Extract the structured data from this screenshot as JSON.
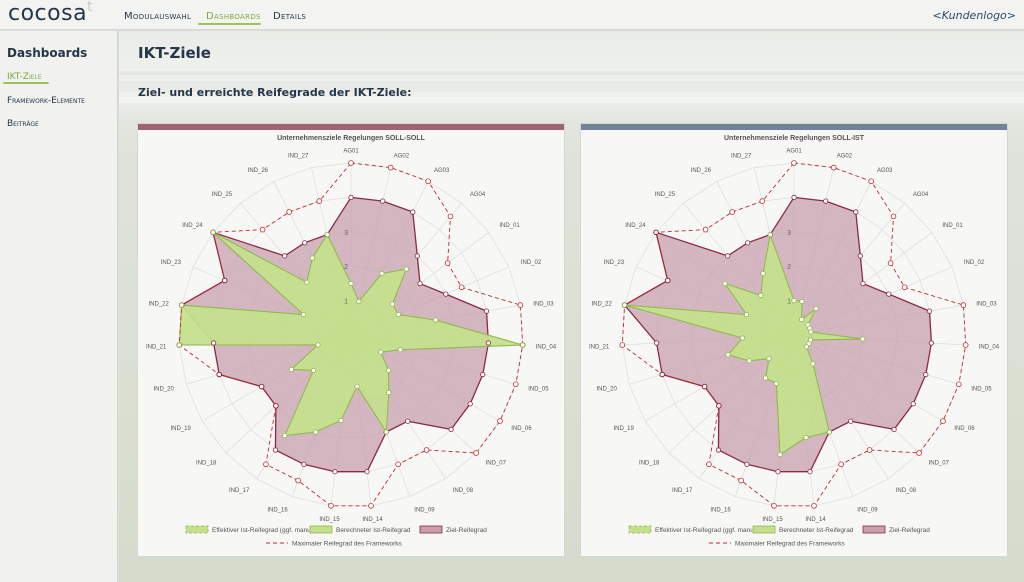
{
  "app": {
    "logo": "cocosa",
    "logo_mark": "t",
    "customer_logo": "<Kundenlogo>"
  },
  "nav": {
    "items": [
      {
        "label": "Modulauswahl"
      },
      {
        "label": "Dashboards"
      },
      {
        "label": "Details"
      }
    ],
    "active": "Dashboards"
  },
  "sidebar": {
    "title": "Dashboards",
    "items": [
      {
        "label": "IKT-Ziele"
      },
      {
        "label": "Framework-Elemente"
      },
      {
        "label": "Beiträge"
      }
    ],
    "active": "IKT-Ziele"
  },
  "page": {
    "title": "IKT-Ziele",
    "subtitle": "Ziel- und erreichte Reifegrade der IKT-Ziele:"
  },
  "colors": {
    "ziel_fill": "#c8a0ae",
    "ziel_line": "#8c2a45",
    "ist_fill": "#c4e08c",
    "ist_line": "#8fb84a",
    "max_line": "#c0282d",
    "panel1_bar": "#a36271",
    "panel2_bar": "#6f8296"
  },
  "chart_data": [
    {
      "type": "radar",
      "title": "Unternehmensziele Regelungen SOLL-SOLL",
      "axes": [
        "AG01",
        "AG02",
        "AG03",
        "AG04",
        "IND_01",
        "IND_02",
        "IND_03",
        "IND_04",
        "IND_05",
        "IND_06",
        "IND_07",
        "IND_08",
        "IND_09",
        "IND_14",
        "IND_15",
        "IND_16",
        "IND_17",
        "IND_18",
        "IND_19",
        "IND_20",
        "IND_21",
        "IND_22",
        "IND_23",
        "IND_24",
        "IND_25",
        "IND_26",
        "IND_27"
      ],
      "tick_labels": [
        "1",
        "2",
        "3"
      ],
      "rmax": 5,
      "series": [
        {
          "name": "Maximaler Reifegrad des Frameworks",
          "style": "dashed",
          "values": [
            5,
            5,
            5,
            4.5,
            3.5,
            3.5,
            5,
            5,
            5,
            5,
            5,
            4,
            4,
            5,
            5,
            4.5,
            4.5,
            3,
            3,
            4,
            5,
            5,
            4,
            5,
            4,
            4,
            4
          ]
        },
        {
          "name": "Ziel-Reifegrad",
          "style": "filled",
          "values": [
            4,
            4,
            4,
            3,
            2.5,
            3,
            4,
            4,
            4,
            4,
            4,
            3,
            3,
            4,
            4,
            4,
            4,
            3,
            3,
            4,
            4,
            5,
            4,
            5,
            3,
            3,
            3
          ]
        },
        {
          "name": "Berechneter Ist-Reifegrad",
          "style": "filled",
          "values": [
            1.5,
            1,
            2,
            2.5,
            1.5,
            1.5,
            2.5,
            5,
            1.5,
            1,
            1.5,
            2,
            3,
            1.5,
            2.5,
            3,
            3.5,
            1.5,
            2,
            1,
            5,
            5,
            1.5,
            5,
            2,
            2.5,
            3
          ]
        },
        {
          "name": "Effektiver Ist-Reifegrad (ggf. manuell)",
          "style": "dashed-fill",
          "values": [
            1.5,
            1,
            2,
            2.5,
            1.5,
            1.5,
            2.5,
            5,
            1.5,
            1,
            1.5,
            2,
            2,
            1.5,
            2.5,
            3,
            3.5,
            1.5,
            2,
            1,
            5,
            5,
            1.5,
            5,
            2,
            2.5,
            3
          ]
        }
      ]
    },
    {
      "type": "radar",
      "title": "Unternehmensziele Regelungen SOLL-IST",
      "axes": [
        "AG01",
        "AG02",
        "AG03",
        "AG04",
        "IND_01",
        "IND_02",
        "IND_03",
        "IND_04",
        "IND_05",
        "IND_06",
        "IND_07",
        "IND_08",
        "IND_09",
        "IND_14",
        "IND_15",
        "IND_16",
        "IND_17",
        "IND_18",
        "IND_19",
        "IND_20",
        "IND_21",
        "IND_22",
        "IND_23",
        "IND_24",
        "IND_25",
        "IND_26",
        "IND_27"
      ],
      "tick_labels": [
        "1",
        "2",
        "3"
      ],
      "rmax": 5,
      "series": [
        {
          "name": "Maximaler Reifegrad des Frameworks",
          "style": "dashed",
          "values": [
            5,
            5,
            5,
            4.5,
            3.5,
            3.5,
            5,
            5,
            5,
            5,
            5,
            4,
            4,
            5,
            5,
            4.5,
            4.5,
            3,
            3,
            4,
            5,
            5,
            4,
            5,
            4,
            4,
            4
          ]
        },
        {
          "name": "Ziel-Reifegrad",
          "style": "filled",
          "values": [
            4,
            4,
            4,
            3,
            2.5,
            3,
            4,
            4,
            4,
            4,
            4,
            3,
            3,
            4,
            4,
            4,
            4,
            3,
            3,
            4,
            4,
            5,
            4,
            5,
            3,
            3,
            3
          ]
        },
        {
          "name": "Berechneter Ist-Reifegrad",
          "style": "filled",
          "values": [
            1,
            1,
            0.5,
            1,
            0.5,
            0.5,
            0.5,
            2,
            0.5,
            0.5,
            0.5,
            1,
            3,
            3,
            3.5,
            1.5,
            1.5,
            1,
            1.5,
            2,
            1.5,
            5,
            1.5,
            2.5,
            1.5,
            2,
            3
          ]
        },
        {
          "name": "Effektiver Ist-Reifegrad (ggf. manuell)",
          "style": "dashed-fill",
          "values": [
            1,
            1,
            0.5,
            1,
            0.5,
            0.5,
            0.5,
            2,
            0.5,
            0.5,
            0.5,
            1,
            2,
            3,
            3.5,
            1.5,
            1.5,
            1,
            1.5,
            2,
            1.5,
            5,
            1.5,
            2.5,
            1.5,
            2,
            3
          ]
        }
      ]
    }
  ]
}
